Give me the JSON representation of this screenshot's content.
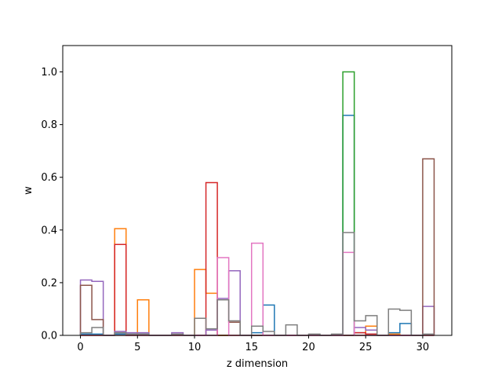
{
  "chart_data": {
    "type": "bar",
    "style": "step-histogram",
    "title": "",
    "xlabel": "z dimension",
    "ylabel": "w",
    "xlim": [
      -1.55,
      32.55
    ],
    "ylim": [
      0,
      1.1
    ],
    "xticks": [
      0,
      5,
      10,
      15,
      20,
      25,
      30
    ],
    "yticks": [
      0.0,
      0.2,
      0.4,
      0.6,
      0.8,
      1.0
    ],
    "xtick_labels": [
      "0",
      "5",
      "10",
      "15",
      "20",
      "25",
      "30"
    ],
    "ytick_labels": [
      "0.0",
      "0.2",
      "0.4",
      "0.6",
      "0.8",
      "1.0"
    ],
    "grid": false,
    "legend": "none",
    "bin_edges": [
      0,
      1,
      2,
      3,
      4,
      5,
      6,
      7,
      8,
      9,
      10,
      11,
      12,
      13,
      14,
      15,
      16,
      17,
      18,
      19,
      20,
      21,
      22,
      23,
      24,
      25,
      26,
      27,
      28,
      29,
      30,
      31
    ],
    "series": [
      {
        "color": "#1f77b4",
        "values": [
          0.005,
          0.005,
          0,
          0.005,
          0.005,
          0.005,
          0,
          0,
          0,
          0,
          0,
          0,
          0,
          0,
          0,
          0.01,
          0.115,
          0,
          0,
          0,
          0,
          0,
          0,
          0.835,
          0.01,
          0.005,
          0,
          0.01,
          0.045,
          0,
          0,
          0
        ]
      },
      {
        "color": "#ff7f0e",
        "values": [
          0,
          0,
          0,
          0.405,
          0,
          0.135,
          0,
          0,
          0,
          0,
          0.25,
          0.16,
          0,
          0,
          0,
          0,
          0,
          0,
          0,
          0,
          0,
          0,
          0,
          0,
          0,
          0.035,
          0,
          0.005,
          0,
          0,
          0,
          0
        ]
      },
      {
        "color": "#2ca02c",
        "values": [
          0,
          0,
          0,
          0,
          0,
          0,
          0,
          0,
          0,
          0,
          0,
          0,
          0,
          0,
          0,
          0,
          0,
          0,
          0,
          0,
          0,
          0,
          0,
          1.0,
          0,
          0,
          0,
          0,
          0,
          0,
          0,
          0
        ]
      },
      {
        "color": "#d62728",
        "values": [
          0,
          0,
          0,
          0.345,
          0,
          0,
          0,
          0,
          0,
          0,
          0,
          0.58,
          0,
          0,
          0,
          0,
          0,
          0,
          0,
          0,
          0,
          0,
          0,
          0,
          0.01,
          0.005,
          0,
          0,
          0,
          0,
          0,
          0
        ]
      },
      {
        "color": "#9467bd",
        "values": [
          0.21,
          0.205,
          0,
          0.015,
          0.01,
          0.01,
          0,
          0,
          0.01,
          0,
          0,
          0.02,
          0.14,
          0.245,
          0,
          0,
          0,
          0,
          0,
          0,
          0,
          0,
          0,
          0,
          0.03,
          0.02,
          0,
          0,
          0,
          0,
          0.11,
          0
        ]
      },
      {
        "color": "#8c564b",
        "values": [
          0.19,
          0.06,
          0,
          0.01,
          0,
          0,
          0,
          0,
          0,
          0,
          0,
          0,
          0.135,
          0.05,
          0,
          0,
          0,
          0,
          0,
          0,
          0,
          0,
          0,
          0,
          0,
          0,
          0,
          0,
          0,
          0,
          0.67,
          0
        ]
      },
      {
        "color": "#e377c2",
        "values": [
          0,
          0,
          0,
          0,
          0,
          0,
          0,
          0,
          0,
          0,
          0,
          0,
          0.295,
          0,
          0,
          0.35,
          0,
          0,
          0,
          0,
          0,
          0,
          0,
          0.315,
          0,
          0,
          0,
          0,
          0,
          0,
          0,
          0
        ]
      },
      {
        "color": "#7f7f7f",
        "values": [
          0.01,
          0.03,
          0,
          0.01,
          0.005,
          0.005,
          0,
          0,
          0.005,
          0,
          0.065,
          0.025,
          0.135,
          0.055,
          0,
          0.035,
          0.015,
          0,
          0.04,
          0,
          0.005,
          0,
          0.005,
          0.39,
          0.055,
          0.075,
          0,
          0.1,
          0.095,
          0,
          0.005,
          0.005
        ]
      }
    ]
  }
}
